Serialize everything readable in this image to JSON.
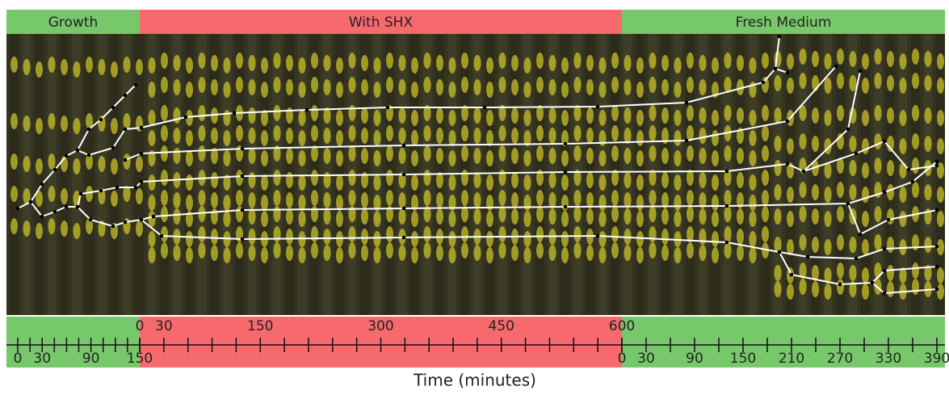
{
  "phases": [
    {
      "label": "Growth",
      "ticks": [
        0,
        30,
        90,
        150
      ]
    },
    {
      "label": "With SHX",
      "ticks": [
        0,
        30,
        150,
        300,
        450,
        600
      ]
    },
    {
      "label": "Fresh Medium",
      "ticks": [
        0,
        30,
        90,
        150,
        210,
        270,
        330,
        390
      ]
    }
  ],
  "axis_title": "Time (minutes)"
}
